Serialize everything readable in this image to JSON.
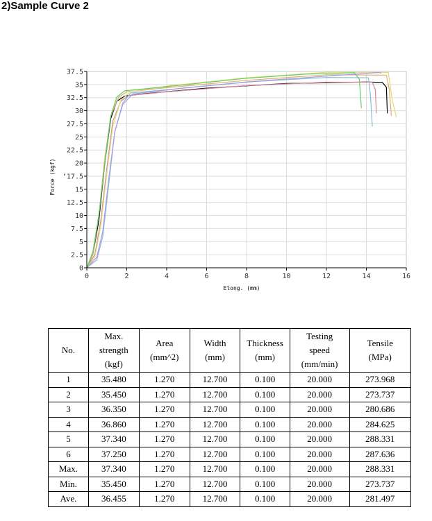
{
  "page": {
    "heading": "2)Sample Curve 2"
  },
  "chart_data": {
    "type": "line",
    "title": "",
    "xlabel": "Elong. (mm)",
    "ylabel": "Force (kgf)",
    "xlim": [
      0,
      16
    ],
    "ylim": [
      0,
      37.5
    ],
    "x_ticks": [
      0,
      2,
      4,
      6,
      8,
      10,
      12,
      14,
      16
    ],
    "y_ticks": [
      0,
      2.5,
      5,
      7.5,
      10,
      12.5,
      15,
      17.5,
      20,
      22.5,
      25,
      27.5,
      30,
      32.5,
      35,
      37.5
    ],
    "y_tick_labels": [
      "0",
      "2.5",
      "5",
      "7.5",
      "10",
      "12.5",
      "15",
      "‘17.5",
      "20",
      "22.5",
      "25",
      "27.5",
      "30",
      "32.5",
      "35",
      "37.5"
    ],
    "grid": true,
    "series": [
      {
        "color": "#000000",
        "points": [
          [
            0,
            0
          ],
          [
            0.3,
            2.5
          ],
          [
            0.6,
            9
          ],
          [
            0.9,
            20
          ],
          [
            1.2,
            28.5
          ],
          [
            1.5,
            31.8
          ],
          [
            1.9,
            32.8
          ],
          [
            3,
            33.3
          ],
          [
            6,
            34.3
          ],
          [
            10,
            35.2
          ],
          [
            14,
            35.48
          ],
          [
            14.8,
            35.4
          ],
          [
            15.0,
            34.5
          ],
          [
            15.05,
            29.5
          ]
        ]
      },
      {
        "color": "#d08a9a",
        "points": [
          [
            0,
            0
          ],
          [
            0.4,
            2.5
          ],
          [
            0.7,
            9
          ],
          [
            1.0,
            19
          ],
          [
            1.3,
            28
          ],
          [
            1.7,
            31.8
          ],
          [
            2.1,
            32.9
          ],
          [
            4,
            33.6
          ],
          [
            8,
            34.8
          ],
          [
            12,
            35.45
          ],
          [
            14.3,
            35.45
          ],
          [
            14.45,
            34
          ],
          [
            14.5,
            29.5
          ]
        ]
      },
      {
        "color": "#88bbdd",
        "points": [
          [
            0,
            0
          ],
          [
            0.5,
            1.5
          ],
          [
            0.8,
            6
          ],
          [
            1.1,
            16
          ],
          [
            1.4,
            26
          ],
          [
            1.8,
            31.5
          ],
          [
            2.2,
            33.4
          ],
          [
            4,
            34
          ],
          [
            8,
            35.5
          ],
          [
            12,
            36.35
          ],
          [
            14.1,
            36.3
          ],
          [
            14.2,
            33
          ],
          [
            14.3,
            27
          ]
        ]
      },
      {
        "color": "#e0b070",
        "points": [
          [
            0,
            0
          ],
          [
            0.3,
            2.5
          ],
          [
            0.6,
            10
          ],
          [
            0.9,
            21
          ],
          [
            1.2,
            29
          ],
          [
            1.6,
            32.6
          ],
          [
            2.0,
            33.6
          ],
          [
            4,
            34.4
          ],
          [
            8,
            35.8
          ],
          [
            12,
            36.86
          ],
          [
            15.0,
            36.8
          ],
          [
            15.15,
            34
          ],
          [
            15.25,
            29
          ]
        ]
      },
      {
        "color": "#dddd77",
        "points": [
          [
            0,
            0
          ],
          [
            0.4,
            2
          ],
          [
            0.7,
            8
          ],
          [
            1.0,
            18
          ],
          [
            1.3,
            27
          ],
          [
            1.7,
            32
          ],
          [
            2.2,
            33.7
          ],
          [
            4,
            34.7
          ],
          [
            8,
            36.3
          ],
          [
            12,
            37.34
          ],
          [
            15.1,
            37.3
          ],
          [
            15.3,
            32
          ],
          [
            15.5,
            28.8
          ]
        ]
      },
      {
        "color": "#66cc66",
        "points": [
          [
            0,
            0
          ],
          [
            0.3,
            3
          ],
          [
            0.6,
            10
          ],
          [
            0.9,
            20
          ],
          [
            1.2,
            29
          ],
          [
            1.5,
            32.6
          ],
          [
            1.9,
            33.8
          ],
          [
            4,
            34.6
          ],
          [
            8,
            36.2
          ],
          [
            11,
            37.0
          ],
          [
            13.4,
            37.25
          ],
          [
            13.65,
            36
          ],
          [
            13.75,
            30.5
          ]
        ]
      },
      {
        "color": "#aa99dd",
        "points": [
          [
            0,
            0
          ],
          [
            0.5,
            2
          ],
          [
            0.8,
            7
          ],
          [
            1.1,
            17
          ],
          [
            1.4,
            26
          ],
          [
            1.8,
            31.2
          ],
          [
            2.3,
            33.2
          ],
          [
            5,
            34.4
          ],
          [
            9,
            35.8
          ],
          [
            12,
            36.6
          ],
          [
            14.6,
            37.3
          ],
          [
            14.75,
            37.2
          ]
        ]
      }
    ]
  },
  "table": {
    "headers": [
      [
        "No."
      ],
      [
        "Max.",
        "strength",
        "(kgf)"
      ],
      [
        "Area",
        "(mm^2)"
      ],
      [
        "Width",
        "(mm)"
      ],
      [
        "Thickness",
        "(mm)"
      ],
      [
        "Testing",
        "speed",
        "(mm/min)"
      ],
      [
        "Tensile",
        "(MPa)"
      ]
    ],
    "rows": [
      [
        "1",
        "35.480",
        "1.270",
        "12.700",
        "0.100",
        "20.000",
        "273.968"
      ],
      [
        "2",
        "35.450",
        "1.270",
        "12.700",
        "0.100",
        "20.000",
        "273.737"
      ],
      [
        "3",
        "36.350",
        "1.270",
        "12.700",
        "0.100",
        "20.000",
        "280.686"
      ],
      [
        "4",
        "36.860",
        "1.270",
        "12.700",
        "0.100",
        "20.000",
        "284.625"
      ],
      [
        "5",
        "37.340",
        "1.270",
        "12.700",
        "0.100",
        "20.000",
        "288.331"
      ],
      [
        "6",
        "37.250",
        "1.270",
        "12.700",
        "0.100",
        "20.000",
        "287.636"
      ],
      [
        "Max.",
        "37.340",
        "1.270",
        "12.700",
        "0.100",
        "20.000",
        "288.331"
      ],
      [
        "Min.",
        "35.450",
        "1.270",
        "12.700",
        "0.100",
        "20.000",
        "273.737"
      ],
      [
        "Ave.",
        "36.455",
        "1.270",
        "12.700",
        "0.100",
        "20.000",
        "281.497"
      ]
    ]
  }
}
